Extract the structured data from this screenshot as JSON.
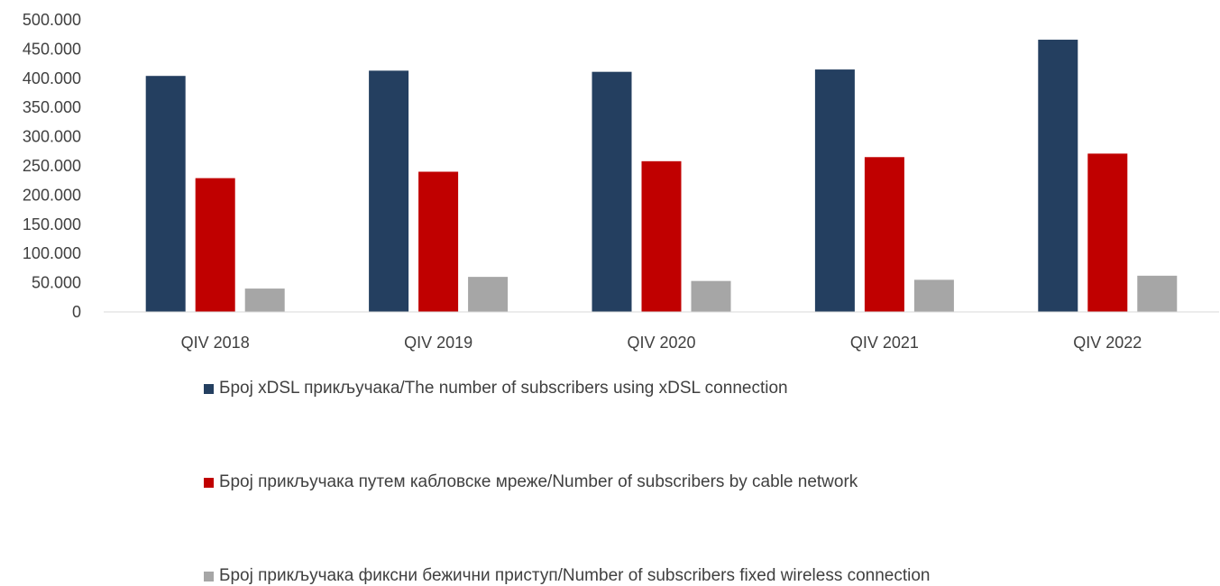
{
  "chart_data": {
    "type": "bar",
    "categories": [
      "QIV 2018",
      "QIV 2019",
      "QIV 2020",
      "QIV 2021",
      "QIV 2022"
    ],
    "series": [
      {
        "name": "Број  xDSL прикључака/The number of subscribers using  xDSL connection",
        "color": "#243f60",
        "values": [
          404000,
          413000,
          411000,
          415000,
          466000
        ]
      },
      {
        "name": "Број прикључака путем  кабловске мреже/Number of subscribers by cable network",
        "color": "#c00000",
        "values": [
          229000,
          240000,
          258000,
          265000,
          271000
        ]
      },
      {
        "name": "Број прикључака фиксни бежични приступ/Number of subscribers fixed wireless connection",
        "color": "#a6a6a6",
        "values": [
          40000,
          60000,
          53000,
          55000,
          62000
        ]
      }
    ],
    "y_ticks": [
      "0",
      "50.000",
      "100.000",
      "150.000",
      "200.000",
      "250.000",
      "300.000",
      "350.000",
      "400.000",
      "450.000",
      "500.000"
    ],
    "ylim": [
      0,
      500000
    ],
    "grid": false,
    "legend_position": "bottom"
  }
}
